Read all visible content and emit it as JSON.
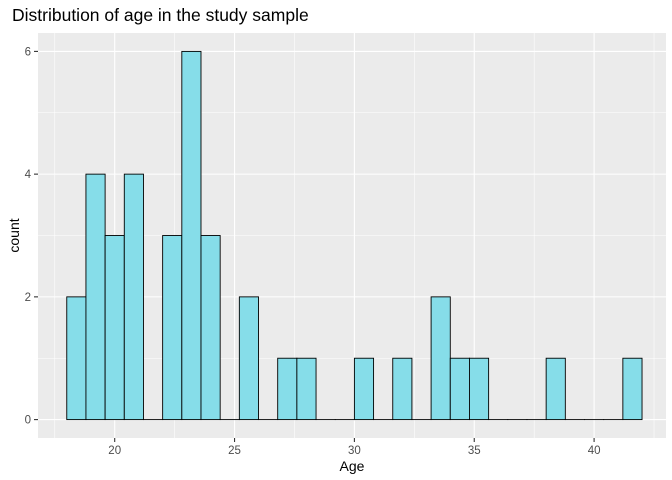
{
  "chart_data": {
    "type": "bar",
    "title": "Distribution of age in the study sample",
    "xlabel": "Age",
    "ylabel": "count",
    "bins": [
      {
        "x": 18.0,
        "count": 2
      },
      {
        "x": 18.8,
        "count": 4
      },
      {
        "x": 19.6,
        "count": 3
      },
      {
        "x": 20.4,
        "count": 4
      },
      {
        "x": 21.2,
        "count": 0
      },
      {
        "x": 22.0,
        "count": 3
      },
      {
        "x": 22.8,
        "count": 6
      },
      {
        "x": 23.6,
        "count": 3
      },
      {
        "x": 24.4,
        "count": 0
      },
      {
        "x": 25.2,
        "count": 2
      },
      {
        "x": 26.0,
        "count": 0
      },
      {
        "x": 26.8,
        "count": 1
      },
      {
        "x": 27.6,
        "count": 1
      },
      {
        "x": 28.4,
        "count": 0
      },
      {
        "x": 29.2,
        "count": 0
      },
      {
        "x": 30.0,
        "count": 1
      },
      {
        "x": 30.8,
        "count": 0
      },
      {
        "x": 31.6,
        "count": 1
      },
      {
        "x": 32.4,
        "count": 0
      },
      {
        "x": 33.2,
        "count": 2
      },
      {
        "x": 34.0,
        "count": 1
      },
      {
        "x": 34.8,
        "count": 1
      },
      {
        "x": 35.6,
        "count": 0
      },
      {
        "x": 36.4,
        "count": 0
      },
      {
        "x": 37.2,
        "count": 0
      },
      {
        "x": 38.0,
        "count": 1
      },
      {
        "x": 38.8,
        "count": 0
      },
      {
        "x": 39.6,
        "count": 0
      },
      {
        "x": 40.4,
        "count": 0
      },
      {
        "x": 41.2,
        "count": 1
      }
    ],
    "binwidth": 0.8,
    "xlim": [
      16.8,
      43.0
    ],
    "ylim": [
      -0.3,
      6.3
    ],
    "x_ticks": [
      20,
      25,
      30,
      35,
      40
    ],
    "y_ticks": [
      0,
      2,
      4,
      6
    ],
    "grid": true,
    "colors": {
      "fill": "#86dde9",
      "outline": "#000000",
      "panel": "#ebebeb",
      "grid_major": "#ffffff"
    }
  }
}
